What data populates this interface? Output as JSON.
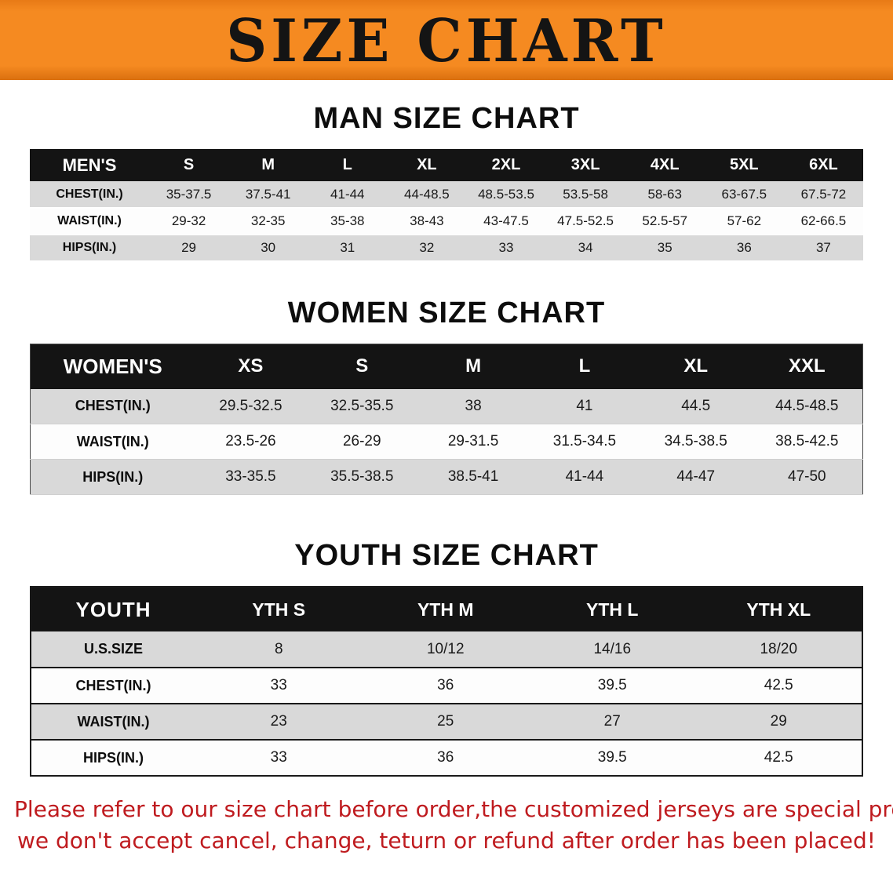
{
  "banner": {
    "title": "SIZE CHART"
  },
  "theme": {
    "banner_bg": "#f58a21",
    "table_header_bg": "#141414",
    "table_header_text": "#ffffff",
    "stripe_gray": "#d9d9d9",
    "note_red": "#bf1b1f"
  },
  "sections": [
    {
      "heading": "MAN SIZE CHART",
      "table": {
        "label": "MEN'S",
        "columns": [
          "S",
          "M",
          "L",
          "XL",
          "2XL",
          "3XL",
          "4XL",
          "5XL",
          "6XL"
        ],
        "rows": [
          {
            "label": "CHEST(IN.)",
            "values": [
              "35-37.5",
              "37.5-41",
              "41-44",
              "44-48.5",
              "48.5-53.5",
              "53.5-58",
              "58-63",
              "63-67.5",
              "67.5-72"
            ]
          },
          {
            "label": "WAIST(IN.)",
            "values": [
              "29-32",
              "32-35",
              "35-38",
              "38-43",
              "43-47.5",
              "47.5-52.5",
              "52.5-57",
              "57-62",
              "62-66.5"
            ]
          },
          {
            "label": "HIPS(IN.)",
            "values": [
              "29",
              "30",
              "31",
              "32",
              "33",
              "34",
              "35",
              "36",
              "37"
            ]
          }
        ]
      }
    },
    {
      "heading": "WOMEN SIZE CHART",
      "table": {
        "label": "WOMEN'S",
        "columns": [
          "XS",
          "S",
          "M",
          "L",
          "XL",
          "XXL"
        ],
        "rows": [
          {
            "label": "CHEST(IN.)",
            "values": [
              "29.5-32.5",
              "32.5-35.5",
              "38",
              "41",
              "44.5",
              "44.5-48.5"
            ]
          },
          {
            "label": "WAIST(IN.)",
            "values": [
              "23.5-26",
              "26-29",
              "29-31.5",
              "31.5-34.5",
              "34.5-38.5",
              "38.5-42.5"
            ]
          },
          {
            "label": "HIPS(IN.)",
            "values": [
              "33-35.5",
              "35.5-38.5",
              "38.5-41",
              "41-44",
              "44-47",
              "47-50"
            ]
          }
        ]
      }
    },
    {
      "heading": "YOUTH SIZE CHART",
      "table": {
        "label": "YOUTH",
        "columns": [
          "YTH S",
          "YTH M",
          "YTH L",
          "YTH XL"
        ],
        "rows": [
          {
            "label": "U.S.SIZE",
            "values": [
              "8",
              "10/12",
              "14/16",
              "18/20"
            ]
          },
          {
            "label": "CHEST(IN.)",
            "values": [
              "33",
              "36",
              "39.5",
              "42.5"
            ]
          },
          {
            "label": "WAIST(IN.)",
            "values": [
              "23",
              "25",
              "27",
              "29"
            ]
          },
          {
            "label": "HIPS(IN.)",
            "values": [
              "33",
              "36",
              "39.5",
              "42.5"
            ]
          }
        ]
      }
    }
  ],
  "footer_note": {
    "line1": "Please refer to our size chart before order,the customized jerseys are special products,",
    "line2": "we don't accept cancel, change, teturn or refund after order has been placed!"
  }
}
